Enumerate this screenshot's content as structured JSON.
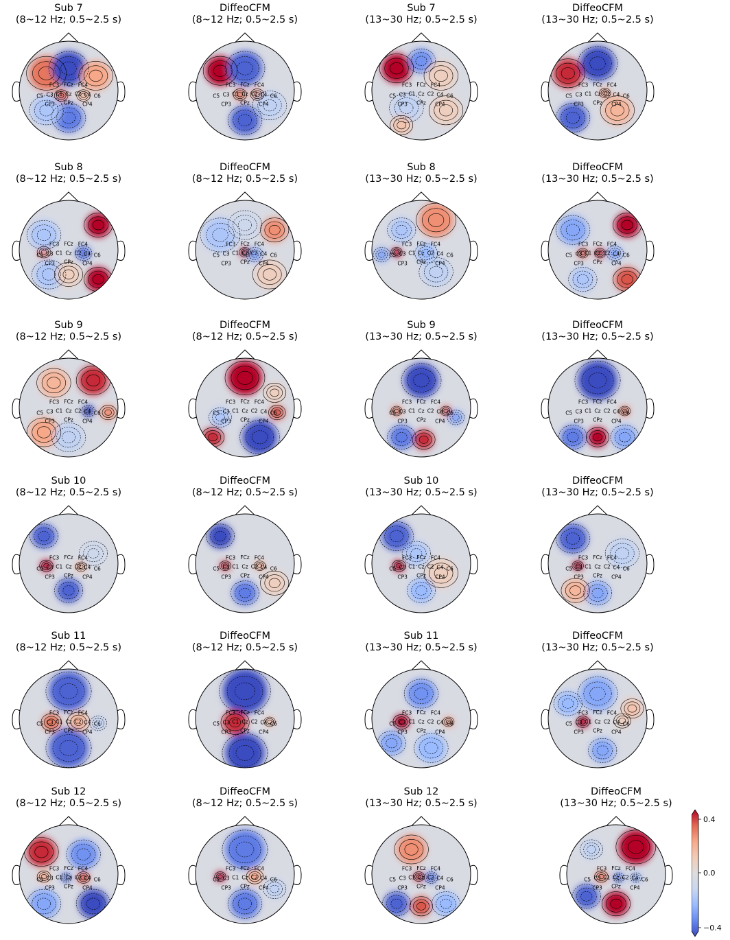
{
  "panels": [
    {
      "title_line1": "Sub 7",
      "title_line2": "(8~12 Hz; 0.5~2.5 s)"
    },
    {
      "title_line1": "DiffeoCFM",
      "title_line2": "(8~12 Hz; 0.5~2.5 s)"
    },
    {
      "title_line1": "Sub 7",
      "title_line2": "(13~30 Hz; 0.5~2.5 s)"
    },
    {
      "title_line1": "DiffeoCFM",
      "title_line2": "(13~30 Hz; 0.5~2.5 s)"
    },
    {
      "title_line1": "Sub 8",
      "title_line2": "(8~12 Hz; 0.5~2.5 s)"
    },
    {
      "title_line1": "DiffeoCFM",
      "title_line2": "(8~12 Hz; 0.5~2.5 s)"
    },
    {
      "title_line1": "Sub 8",
      "title_line2": "(13~30 Hz; 0.5~2.5 s)"
    },
    {
      "title_line1": "DiffeoCFM",
      "title_line2": "(13~30 Hz; 0.5~2.5 s)"
    },
    {
      "title_line1": "Sub 9",
      "title_line2": "(8~12 Hz; 0.5~2.5 s)"
    },
    {
      "title_line1": "DiffeoCFM",
      "title_line2": "(8~12 Hz; 0.5~2.5 s)"
    },
    {
      "title_line1": "Sub 9",
      "title_line2": "(13~30 Hz; 0.5~2.5 s)"
    },
    {
      "title_line1": "DiffeoCFM",
      "title_line2": "(13~30 Hz; 0.5~2.5 s)"
    },
    {
      "title_line1": "Sub 10",
      "title_line2": "(8~12 Hz; 0.5~2.5 s)"
    },
    {
      "title_line1": "DiffeoCFM",
      "title_line2": "(8~12 Hz; 0.5~2.5 s)"
    },
    {
      "title_line1": "Sub 10",
      "title_line2": "(13~30 Hz; 0.5~2.5 s)"
    },
    {
      "title_line1": "DiffeoCFM",
      "title_line2": "(13~30 Hz; 0.5~2.5 s)"
    },
    {
      "title_line1": "Sub 11",
      "title_line2": "(8~12 Hz; 0.5~2.5 s)"
    },
    {
      "title_line1": "DiffeoCFM",
      "title_line2": "(8~12 Hz; 0.5~2.5 s)"
    },
    {
      "title_line1": "Sub 11",
      "title_line2": "(13~30 Hz; 0.5~2.5 s)"
    },
    {
      "title_line1": "DiffeoCFM",
      "title_line2": "(13~30 Hz; 0.5~2.5 s)"
    },
    {
      "title_line1": "Sub 12",
      "title_line2": "(8~12 Hz; 0.5~2.5 s)"
    },
    {
      "title_line1": "DiffeoCFM",
      "title_line2": "(8~12 Hz; 0.5~2.5 s)"
    },
    {
      "title_line1": "Sub 12",
      "title_line2": "(13~30 Hz; 0.5~2.5 s)"
    },
    {
      "title_line1": "DiffeoCFM",
      "title_line2": "(13~30 Hz; 0.5~2.5 s)"
    }
  ],
  "electrodes": [
    "FC3",
    "FCz",
    "FC4",
    "C5",
    "C3",
    "C1",
    "Cz",
    "C2",
    "C4",
    "C6",
    "CP3",
    "CPz",
    "CP4"
  ],
  "colorbar": {
    "ticks": [
      "0.4",
      "0.0",
      "−0.4"
    ],
    "colors": [
      "#3b4cc0",
      "#6788ee",
      "#9abbff",
      "#c9d7f0",
      "#dddddd",
      "#f2cbb7",
      "#f7a889",
      "#e26952",
      "#b40426"
    ]
  }
}
